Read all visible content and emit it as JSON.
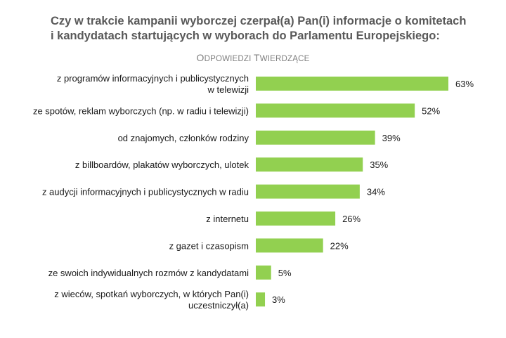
{
  "chart_data": {
    "type": "bar",
    "orientation": "horizontal",
    "title_lines": [
      "Czy w trakcie kampanii wyborczej czerpał(a) Pan(i) informacje o komitetach",
      "i kandydatach startujących w wyborach do Parlamentu Europejskiego:"
    ],
    "subtitle": "Odpowiedzi twierdzące",
    "categories": [
      [
        "z programów informacyjnych i publicystycznych",
        "w telewizji"
      ],
      [
        "ze spotów, reklam wyborczych (np. w radiu i telewizji)"
      ],
      [
        "od znajomych, członków rodziny"
      ],
      [
        "z billboardów, plakatów wyborczych, ulotek"
      ],
      [
        "z audycji informacyjnych i publicystycznych w radiu"
      ],
      [
        "z internetu"
      ],
      [
        "z gazet i czasopism"
      ],
      [
        "ze swoich indywidualnych rozmów z kandydatami"
      ],
      [
        "z wieców, spotkań wyborczych, w których Pan(i)",
        "uczestniczył(a)"
      ]
    ],
    "values": [
      63,
      52,
      39,
      35,
      34,
      26,
      22,
      5,
      3
    ],
    "value_labels": [
      "63%",
      "52%",
      "39%",
      "35%",
      "34%",
      "26%",
      "22%",
      "5%",
      "3%"
    ],
    "unit": "%",
    "xlim": [
      0,
      63
    ],
    "grid": false,
    "legend": "none",
    "colors": {
      "bar": "#92d050",
      "title": "#595959",
      "subtitle": "#7f7f7f"
    }
  }
}
